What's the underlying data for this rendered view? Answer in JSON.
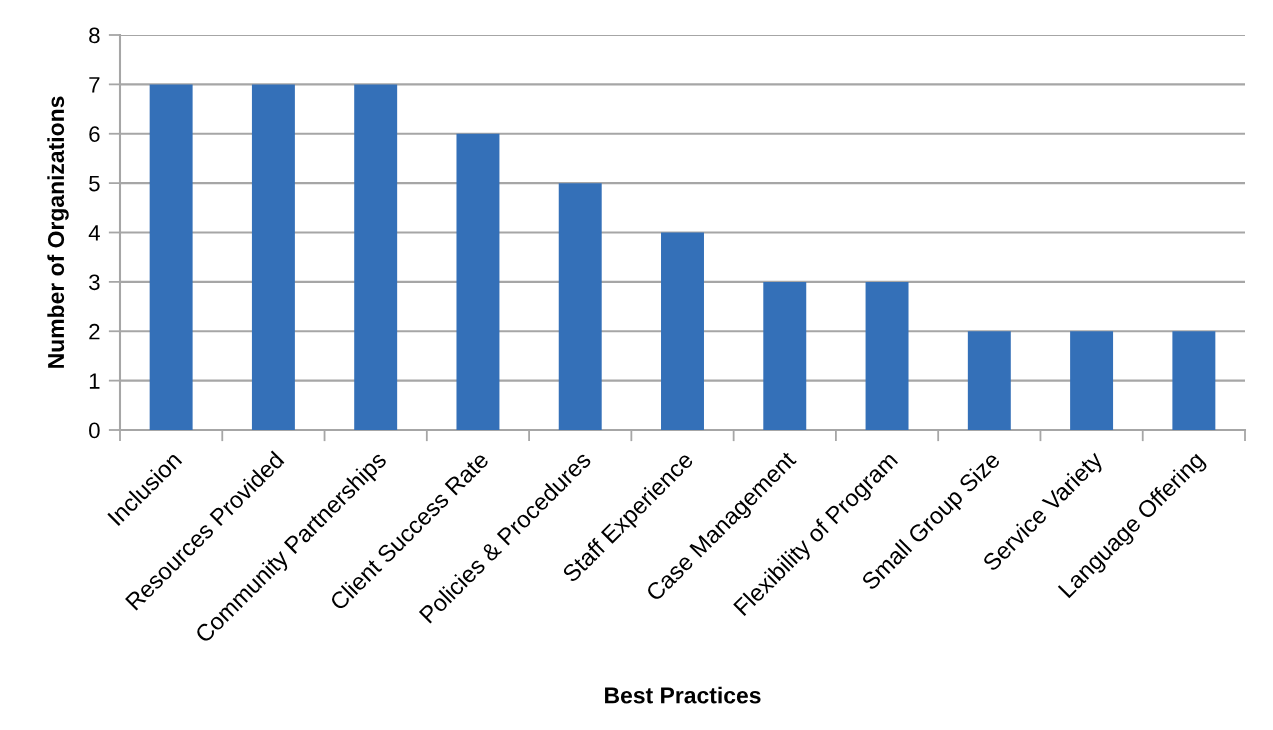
{
  "chart_data": {
    "type": "bar",
    "categories": [
      "Inclusion",
      "Resources Provided",
      "Community Partnerships",
      "Client Success Rate",
      "Policies & Procedures",
      "Staff Experience",
      "Case Management",
      "Flexibility of Program",
      "Small Group Size",
      "Service Variety",
      "Language Offering"
    ],
    "values": [
      7,
      7,
      7,
      6,
      5,
      4,
      3,
      3,
      2,
      2,
      2
    ],
    "color": "#3470b8",
    "xlabel": "Best Practices",
    "ylabel": "Number of Organizations",
    "ylim": [
      0,
      8
    ],
    "yticks": [
      0,
      1,
      2,
      3,
      4,
      5,
      6,
      7,
      8
    ],
    "grid": "y"
  }
}
